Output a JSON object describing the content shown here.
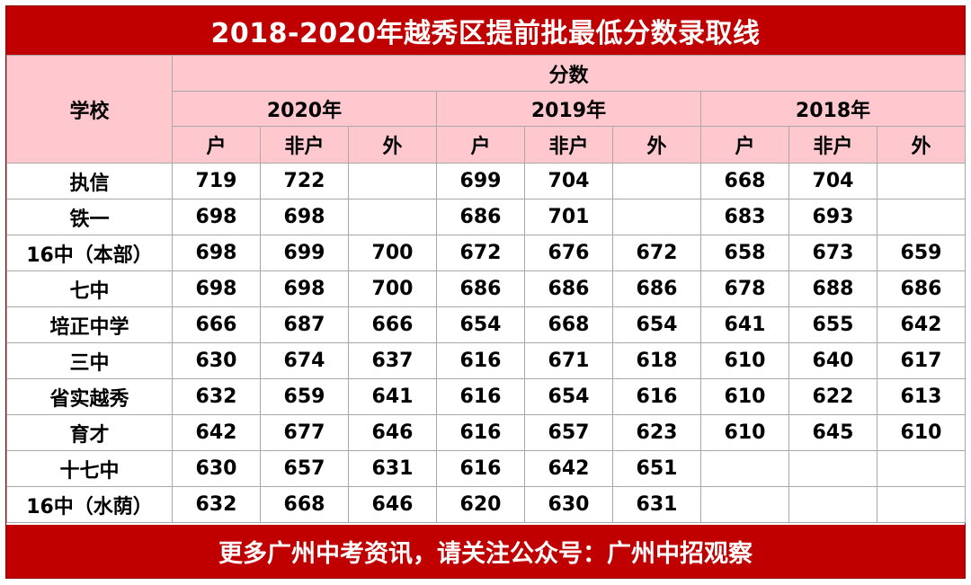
{
  "title": "2018-2020年越秀区提前批最低分数录取线",
  "footer": "更多广州中考资讯，请关注公众号：广州中招观察",
  "header": {
    "school": "学校",
    "score": "分数",
    "years": [
      "2020年",
      "2019年",
      "2018年"
    ],
    "subcols": [
      "户",
      "非户",
      "外"
    ]
  },
  "rows": [
    {
      "name": "执信",
      "values": [
        "719",
        "722",
        "",
        "699",
        "704",
        "",
        "668",
        "704",
        ""
      ]
    },
    {
      "name": "铁一",
      "values": [
        "698",
        "698",
        "",
        "686",
        "701",
        "",
        "683",
        "693",
        ""
      ]
    },
    {
      "name": "16中（本部）",
      "values": [
        "698",
        "699",
        "700",
        "672",
        "676",
        "672",
        "658",
        "673",
        "659"
      ]
    },
    {
      "name": "七中",
      "values": [
        "698",
        "698",
        "700",
        "686",
        "686",
        "686",
        "678",
        "688",
        "686"
      ]
    },
    {
      "name": "培正中学",
      "values": [
        "666",
        "687",
        "666",
        "654",
        "668",
        "654",
        "641",
        "655",
        "642"
      ]
    },
    {
      "name": "三中",
      "values": [
        "630",
        "674",
        "637",
        "616",
        "671",
        "618",
        "610",
        "640",
        "617"
      ]
    },
    {
      "name": "省实越秀",
      "values": [
        "632",
        "659",
        "641",
        "616",
        "654",
        "616",
        "610",
        "622",
        "613"
      ]
    },
    {
      "name": "育才",
      "values": [
        "642",
        "677",
        "646",
        "616",
        "657",
        "623",
        "610",
        "645",
        "610"
      ]
    },
    {
      "name": "十七中",
      "values": [
        "630",
        "657",
        "631",
        "616",
        "642",
        "651",
        "",
        "",
        ""
      ]
    },
    {
      "name": "16中（水荫）",
      "values": [
        "632",
        "668",
        "646",
        "620",
        "630",
        "631",
        "",
        "",
        ""
      ]
    }
  ]
}
